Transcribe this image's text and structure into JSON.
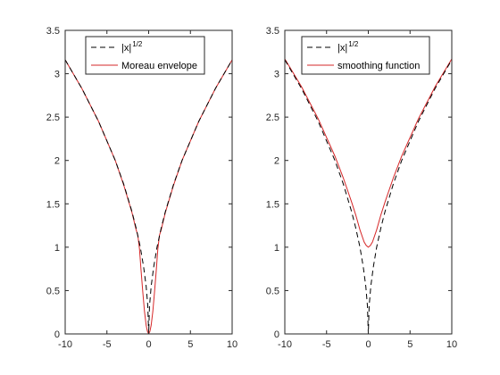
{
  "chart_data": [
    {
      "type": "line",
      "xlim": [
        -10,
        10
      ],
      "ylim": [
        0,
        3.5
      ],
      "x_ticks": [
        -10,
        -5,
        0,
        5,
        10
      ],
      "y_ticks": [
        0,
        0.5,
        1,
        1.5,
        2,
        2.5,
        3,
        3.5
      ],
      "x_tick_labels": [
        "-10",
        "-5",
        "0",
        "5",
        "10"
      ],
      "y_tick_labels": [
        "0",
        "0.5",
        "1",
        "1.5",
        "2",
        "2.5",
        "3",
        "3.5"
      ],
      "legend_placement": "top-center",
      "grid": false,
      "series": [
        {
          "name": "|x|",
          "name_superscript": "1/2",
          "style": "dashed",
          "color": "#000000",
          "x": [
            -10,
            -8,
            -6,
            -4,
            -3,
            -2,
            -1.5,
            -1,
            -0.6,
            -0.3,
            -0.1,
            0,
            0.1,
            0.3,
            0.6,
            1,
            1.5,
            2,
            3,
            4,
            6,
            8,
            10
          ],
          "y": [
            3.16,
            2.83,
            2.45,
            2.0,
            1.73,
            1.41,
            1.22,
            1.0,
            0.77,
            0.55,
            0.32,
            0,
            0.32,
            0.55,
            0.77,
            1.0,
            1.22,
            1.41,
            1.73,
            2.0,
            2.45,
            2.83,
            3.16
          ]
        },
        {
          "name": "Moreau envelope",
          "style": "solid",
          "color": "#d62728",
          "x": [
            -10,
            -8,
            -6,
            -4,
            -3,
            -2,
            -1.5,
            -1.3,
            -1.1,
            -0.9,
            -0.7,
            -0.5,
            -0.3,
            -0.15,
            0,
            0.15,
            0.3,
            0.5,
            0.7,
            0.9,
            1.1,
            1.3,
            1.5,
            2,
            3,
            4,
            6,
            8,
            10
          ],
          "y": [
            3.16,
            2.83,
            2.45,
            2.0,
            1.72,
            1.4,
            1.2,
            1.14,
            0.98,
            0.72,
            0.48,
            0.26,
            0.1,
            0.03,
            0,
            0.03,
            0.1,
            0.26,
            0.48,
            0.72,
            0.98,
            1.14,
            1.2,
            1.4,
            1.72,
            2.0,
            2.45,
            2.83,
            3.16
          ]
        }
      ]
    },
    {
      "type": "line",
      "xlim": [
        -10,
        10
      ],
      "ylim": [
        0,
        3.5
      ],
      "x_ticks": [
        -10,
        -5,
        0,
        5,
        10
      ],
      "y_ticks": [
        0,
        0.5,
        1,
        1.5,
        2,
        2.5,
        3,
        3.5
      ],
      "x_tick_labels": [
        "-10",
        "-5",
        "0",
        "5",
        "10"
      ],
      "y_tick_labels": [
        "0",
        "0.5",
        "1",
        "1.5",
        "2",
        "2.5",
        "3",
        "3.5"
      ],
      "legend_placement": "top-center",
      "grid": false,
      "series": [
        {
          "name": "|x|",
          "name_superscript": "1/2",
          "style": "dashed",
          "color": "#000000",
          "x": [
            -10,
            -8,
            -6,
            -4,
            -3,
            -2,
            -1.5,
            -1,
            -0.6,
            -0.3,
            -0.1,
            0,
            0.1,
            0.3,
            0.6,
            1,
            1.5,
            2,
            3,
            4,
            6,
            8,
            10
          ],
          "y": [
            3.16,
            2.83,
            2.45,
            2.0,
            1.73,
            1.41,
            1.22,
            1.0,
            0.77,
            0.55,
            0.32,
            0,
            0.32,
            0.55,
            0.77,
            1.0,
            1.22,
            1.41,
            1.73,
            2.0,
            2.45,
            2.83,
            3.16
          ]
        },
        {
          "name": "smoothing function",
          "style": "solid",
          "color": "#d62728",
          "x": [
            -10,
            -8,
            -6,
            -4,
            -3,
            -2,
            -1.5,
            -1,
            -0.5,
            -0.25,
            0,
            0.25,
            0.5,
            1,
            1.5,
            2,
            3,
            4,
            6,
            8,
            10
          ],
          "y": [
            3.17,
            2.85,
            2.48,
            2.05,
            1.8,
            1.52,
            1.37,
            1.2,
            1.06,
            1.02,
            1.0,
            1.02,
            1.06,
            1.2,
            1.37,
            1.52,
            1.8,
            2.05,
            2.48,
            2.85,
            3.17
          ]
        }
      ]
    }
  ]
}
